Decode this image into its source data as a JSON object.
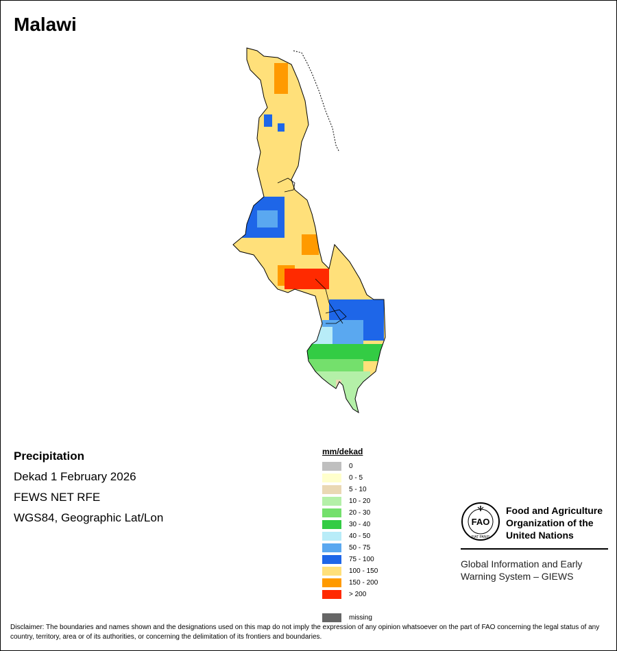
{
  "title": "Malawi",
  "info": {
    "variable": "Precipitation",
    "period": "Dekad 1 February 2026",
    "source": "FEWS NET RFE",
    "projection": "WGS84, Geographic Lat/Lon"
  },
  "legend": {
    "title": "mm/dekad",
    "classes": [
      {
        "label": "0",
        "color": "#bfbfbf"
      },
      {
        "label": "0 - 5",
        "color": "#ffffcc"
      },
      {
        "label": "5 - 10",
        "color": "#ead8b4"
      },
      {
        "label": "10 - 20",
        "color": "#b4f0a8"
      },
      {
        "label": "20 - 30",
        "color": "#74e06c"
      },
      {
        "label": "30 - 40",
        "color": "#33cc44"
      },
      {
        "label": "40 - 50",
        "color": "#b8ecf8"
      },
      {
        "label": "50 - 75",
        "color": "#5aa8f0"
      },
      {
        "label": "75 - 100",
        "color": "#1e66e8"
      },
      {
        "label": "100 - 150",
        "color": "#ffe07a"
      },
      {
        "label": "150 - 200",
        "color": "#ff9a00"
      },
      {
        "label": "> 200",
        "color": "#ff2a00"
      }
    ],
    "missing": {
      "label": "missing",
      "color": "#666666"
    }
  },
  "fao": {
    "emblem_text": "FAO",
    "emblem_motto": "FIAT PANIS",
    "name_line1": "Food and Agriculture",
    "name_line2": "Organization of the",
    "name_line3": "United Nations",
    "system_line1": "Global Information and Early",
    "system_line2": "Warning System – GIEWS"
  },
  "disclaimer": "Disclaimer: The boundaries and names shown and the designations used on this map do not imply the expression of any opinion whatsoever on the part of FAO concerning the legal status of any country, territory, area or of its authorities, or concerning the delimitation of its frontiers and boundaries."
}
